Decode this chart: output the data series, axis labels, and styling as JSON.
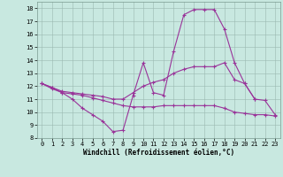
{
  "title": "",
  "xlabel": "Windchill (Refroidissement éolien,°C)",
  "ylabel": "",
  "background_color": "#c8e8e0",
  "grid_color": "#9ab8b0",
  "line_color": "#993399",
  "xlim": [
    -0.5,
    23.5
  ],
  "ylim": [
    8,
    18.5
  ],
  "xticks": [
    0,
    1,
    2,
    3,
    4,
    5,
    6,
    7,
    8,
    9,
    10,
    11,
    12,
    13,
    14,
    15,
    16,
    17,
    18,
    19,
    20,
    21,
    22,
    23
  ],
  "yticks": [
    8,
    9,
    10,
    11,
    12,
    13,
    14,
    15,
    16,
    17,
    18
  ],
  "lines": [
    {
      "x": [
        0,
        1,
        2,
        3,
        4,
        5,
        6,
        7,
        8,
        9,
        10,
        11,
        12,
        13,
        14,
        15,
        16,
        17,
        18,
        19,
        20,
        21
      ],
      "y": [
        12.2,
        11.8,
        11.5,
        11.0,
        10.3,
        9.8,
        9.3,
        8.5,
        8.6,
        11.3,
        13.8,
        11.5,
        11.3,
        14.7,
        17.5,
        17.9,
        17.9,
        17.9,
        16.4,
        13.8,
        12.2,
        11.0
      ]
    },
    {
      "x": [
        0,
        1,
        2,
        3,
        4,
        5,
        6,
        7,
        8,
        9,
        10,
        11,
        12,
        13,
        14,
        15,
        16,
        17,
        18,
        19,
        20,
        21,
        22,
        23
      ],
      "y": [
        12.2,
        11.9,
        11.6,
        11.5,
        11.4,
        11.3,
        11.2,
        11.0,
        11.0,
        11.5,
        12.0,
        12.3,
        12.5,
        13.0,
        13.3,
        13.5,
        13.5,
        13.5,
        13.8,
        12.5,
        12.2,
        11.0,
        10.9,
        9.8
      ]
    },
    {
      "x": [
        0,
        1,
        2,
        3,
        4,
        5,
        6,
        7,
        8,
        9,
        10,
        11,
        12,
        13,
        14,
        15,
        16,
        17,
        18,
        19,
        20,
        21,
        22,
        23
      ],
      "y": [
        12.2,
        11.9,
        11.5,
        11.4,
        11.3,
        11.1,
        10.9,
        10.7,
        10.5,
        10.4,
        10.4,
        10.4,
        10.5,
        10.5,
        10.5,
        10.5,
        10.5,
        10.5,
        10.3,
        10.0,
        9.9,
        9.8,
        9.8,
        9.7
      ]
    }
  ]
}
